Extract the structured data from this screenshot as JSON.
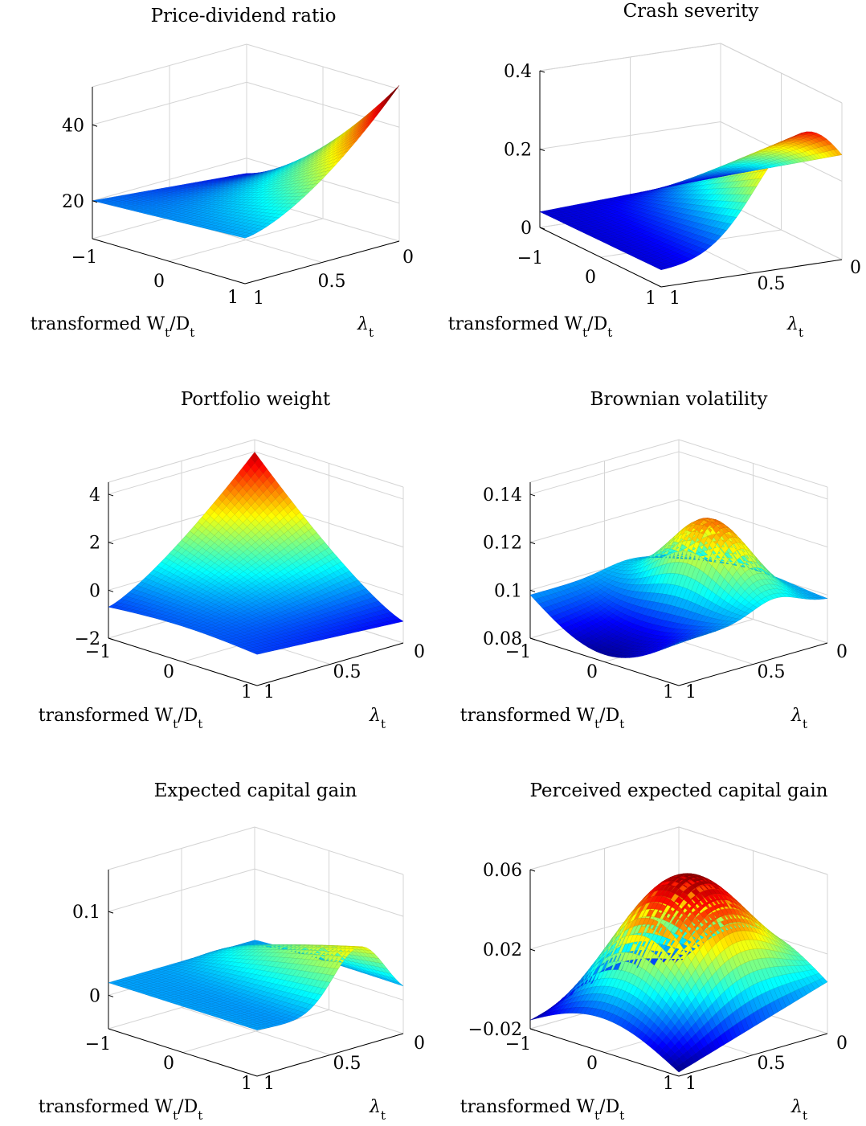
{
  "chart_data": [
    {
      "type": "surface",
      "title": "Price-dividend ratio",
      "xlabel": "transformed W_t/D_t",
      "ylabel": "λ_t",
      "x_ticks": [
        "−1",
        "0",
        "1"
      ],
      "y_ticks": [
        "1",
        "0.5",
        "0"
      ],
      "z_ticks": [
        "20",
        "40"
      ],
      "xlim": [
        -1,
        1
      ],
      "ylim": [
        0,
        1
      ],
      "zlim": [
        10,
        50
      ],
      "colormap": "jet",
      "grid": true,
      "corner_values": {
        "x_-1_lam_1": 20,
        "x_1_lam_1": 16,
        "x_-1_lam_0": 14,
        "x_1_lam_0": 49
      }
    },
    {
      "type": "surface",
      "title": "Crash severity",
      "xlabel": "transformed W_t/D_t",
      "ylabel": "λ_t",
      "x_ticks": [
        "−1",
        "0",
        "1"
      ],
      "y_ticks": [
        "1",
        "0.5",
        "0"
      ],
      "z_ticks": [
        "0",
        "0.2",
        "0.4"
      ],
      "xlim": [
        -1,
        1
      ],
      "ylim": [
        0,
        1
      ],
      "zlim": [
        0,
        0.4
      ],
      "colormap": "jet",
      "grid": true,
      "peak_value": 0.33
    },
    {
      "type": "surface",
      "title": "Portfolio weight",
      "xlabel": "transformed W_t/D_t",
      "ylabel": "λ_t",
      "x_ticks": [
        "−1",
        "0",
        "1"
      ],
      "y_ticks": [
        "1",
        "0.5",
        "0"
      ],
      "z_ticks": [
        "−2",
        "0",
        "2",
        "4"
      ],
      "xlim": [
        -1,
        1
      ],
      "ylim": [
        0,
        1
      ],
      "zlim": [
        -2,
        4.5
      ],
      "colormap": "jet",
      "grid": true,
      "peak_value": 4.4
    },
    {
      "type": "surface",
      "title": "Brownian volatility",
      "xlabel": "transformed W_t/D_t",
      "ylabel": "λ_t",
      "x_ticks": [
        "−1",
        "0",
        "1"
      ],
      "y_ticks": [
        "1",
        "0.5",
        "0"
      ],
      "z_ticks": [
        "0.08",
        "0.1",
        "0.12",
        "0.14"
      ],
      "xlim": [
        -1,
        1
      ],
      "ylim": [
        0,
        1
      ],
      "zlim": [
        0.08,
        0.145
      ],
      "colormap": "jet",
      "grid": true,
      "peak_value": 0.134
    },
    {
      "type": "surface",
      "title": "Expected capital gain",
      "xlabel": "transformed W_t/D_t",
      "ylabel": "λ_t",
      "x_ticks": [
        "−1",
        "0",
        "1"
      ],
      "y_ticks": [
        "1",
        "0.5",
        "0"
      ],
      "z_ticks": [
        "0",
        "0.1"
      ],
      "xlim": [
        -1,
        1
      ],
      "ylim": [
        0,
        1
      ],
      "zlim": [
        -0.04,
        0.15
      ],
      "colormap": "jet",
      "grid": true,
      "peak_value": 0.09
    },
    {
      "type": "surface",
      "title": "Perceived expected capital gain",
      "xlabel": "transformed W_t/D_t",
      "ylabel": "λ_t",
      "x_ticks": [
        "−1",
        "0",
        "1"
      ],
      "y_ticks": [
        "1",
        "0.5",
        "0"
      ],
      "z_ticks": [
        "−0.02",
        "0.02",
        "0.06"
      ],
      "xlim": [
        -1,
        1
      ],
      "ylim": [
        0,
        1
      ],
      "zlim": [
        -0.02,
        0.06
      ],
      "colormap": "jet",
      "grid": true,
      "peak_value": 0.052
    }
  ]
}
